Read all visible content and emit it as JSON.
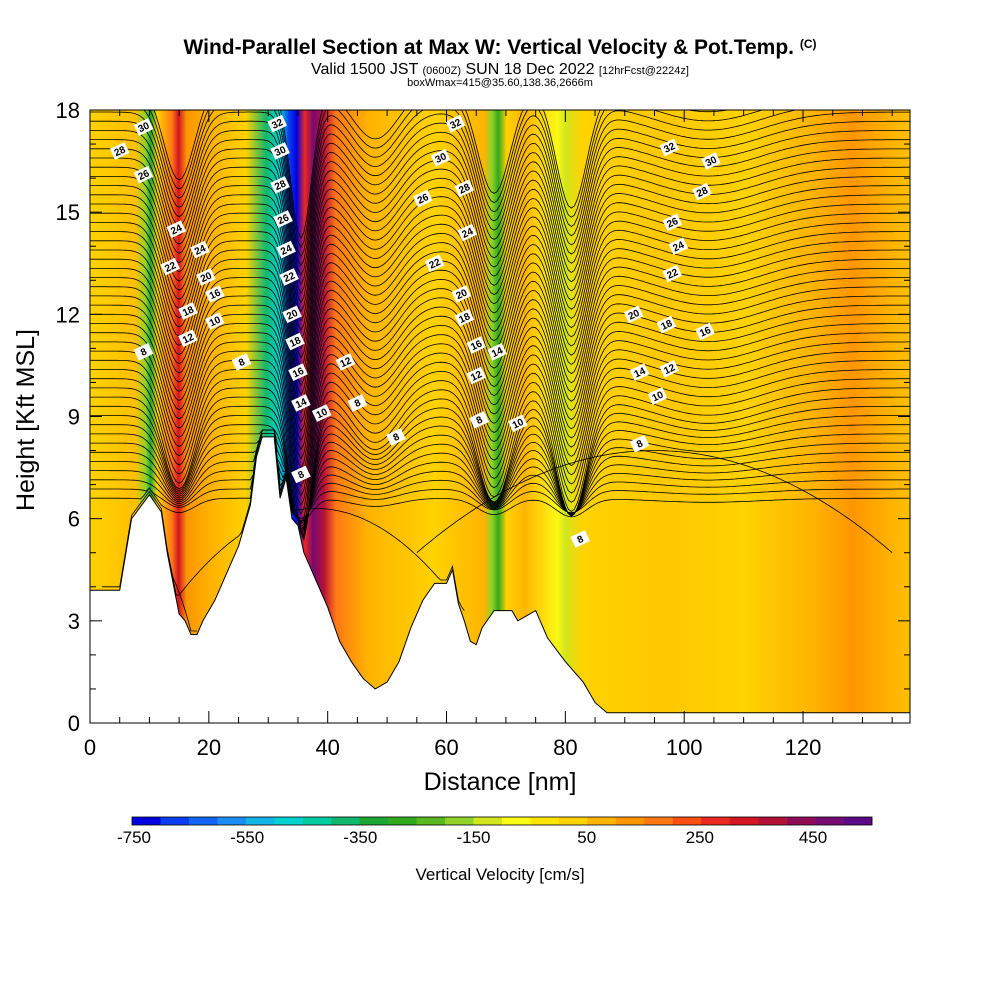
{
  "header": {
    "title_main": "Wind-Parallel Section at Max W: Vertical Velocity & Pot.Temp.",
    "title_mark": "(C)",
    "valid_a": "Valid 1500 JST",
    "valid_utc": "(0600Z)",
    "valid_b": "SUN 18 Dec 2022",
    "forecast": "[12hrFcst@2224z]",
    "box_info": "boxWmax=415@35.60,138.36,2666m"
  },
  "chart_data": {
    "type": "heatmap",
    "xlabel": "Distance [nm]",
    "ylabel": "Height [Kft MSL]",
    "xlim": [
      0,
      138
    ],
    "ylim": [
      0,
      18
    ],
    "x_ticks": [
      0,
      20,
      40,
      60,
      80,
      100,
      120
    ],
    "y_ticks": [
      0,
      3,
      6,
      9,
      12,
      15,
      18
    ],
    "colorbar": {
      "label": "Vertical Velocity [cm/s]",
      "tick_labels": [
        "-750",
        "-550",
        "-350",
        "-150",
        "50",
        "250",
        "450"
      ],
      "colors": [
        "#0000e0",
        "#0a3cf0",
        "#1464f5",
        "#1e8cf5",
        "#14b4e6",
        "#00d2d2",
        "#00cca0",
        "#10b870",
        "#1ea632",
        "#32a81e",
        "#5ab91e",
        "#91d228",
        "#d2e61e",
        "#fafa14",
        "#ffe600",
        "#ffd200",
        "#ffb400",
        "#ff9600",
        "#ff7814",
        "#fa5014",
        "#eb281e",
        "#d21423",
        "#b40f37",
        "#910a55",
        "#780a73",
        "#5a0a87"
      ]
    },
    "vertical_velocity_zones": [
      {
        "x_center": 11.5,
        "value_cms": -200
      },
      {
        "x_center": 17,
        "value_cms": 300
      },
      {
        "x_center": 33.5,
        "value_cms": -700
      },
      {
        "x_center": 38,
        "value_cms": 415
      },
      {
        "x_center": 69,
        "value_cms": -180
      },
      {
        "x_center": 80,
        "value_cms": -80
      },
      {
        "x_center": 128,
        "value_cms": 120
      }
    ],
    "terrain_kft": [
      [
        0,
        3.9
      ],
      [
        5,
        3.9
      ],
      [
        7,
        6
      ],
      [
        10,
        6.7
      ],
      [
        12,
        6.2
      ],
      [
        13,
        5
      ],
      [
        15,
        3.2
      ],
      [
        16,
        3
      ],
      [
        17,
        2.6
      ],
      [
        18,
        2.6
      ],
      [
        19,
        3
      ],
      [
        21,
        3.6
      ],
      [
        23,
        4.4
      ],
      [
        25,
        5.2
      ],
      [
        27,
        6.4
      ],
      [
        28,
        7.8
      ],
      [
        29,
        8.4
      ],
      [
        31,
        8.4
      ],
      [
        32,
        6.6
      ],
      [
        33,
        7.2
      ],
      [
        34,
        6
      ],
      [
        35,
        5.8
      ],
      [
        36,
        5
      ],
      [
        37,
        4.6
      ],
      [
        38,
        4.2
      ],
      [
        40,
        3.4
      ],
      [
        42,
        2.4
      ],
      [
        44,
        1.8
      ],
      [
        46,
        1.3
      ],
      [
        48,
        1
      ],
      [
        50,
        1.2
      ],
      [
        52,
        1.8
      ],
      [
        54,
        2.8
      ],
      [
        56,
        3.6
      ],
      [
        58,
        4.1
      ],
      [
        60,
        4.1
      ],
      [
        61,
        4.5
      ],
      [
        62,
        3.5
      ],
      [
        63,
        3
      ],
      [
        64,
        2.4
      ],
      [
        65,
        2.3
      ],
      [
        66,
        2.8
      ],
      [
        68,
        3.3
      ],
      [
        71,
        3.3
      ],
      [
        72,
        3
      ],
      [
        75,
        3.3
      ],
      [
        77,
        2.5
      ],
      [
        80,
        1.8
      ],
      [
        83,
        1.2
      ],
      [
        85,
        0.6
      ],
      [
        87,
        0.3
      ],
      [
        138,
        0.3
      ]
    ],
    "pot_temp_labels": [
      "8",
      "10",
      "12",
      "14",
      "16",
      "18",
      "20",
      "22",
      "24",
      "26",
      "28",
      "30",
      "32"
    ]
  }
}
